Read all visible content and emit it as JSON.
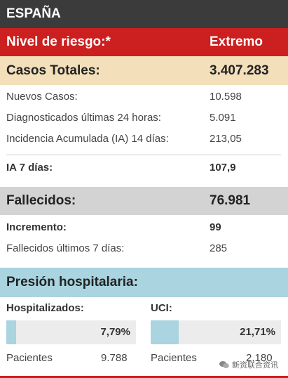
{
  "header": {
    "title": "ESPAÑA"
  },
  "risk": {
    "label": "Nivel de riesgo:*",
    "value": "Extremo"
  },
  "casos": {
    "label": "Casos Totales:",
    "value": "3.407.283"
  },
  "casos_rows": [
    {
      "label": "Nuevos Casos:",
      "value": "10.598"
    },
    {
      "label": "Diagnosticados últimas 24 horas:",
      "value": "5.091"
    },
    {
      "label": "Incidencia Acumulada (IA) 14 días:",
      "value": "213,05"
    },
    {
      "label": "IA 7 días:",
      "value": "107,9"
    }
  ],
  "fallecidos": {
    "label": "Fallecidos:",
    "value": "76.981"
  },
  "fallecidos_rows": [
    {
      "label": "Incremento:",
      "value": "99"
    },
    {
      "label": "Fallecidos últimos 7 días:",
      "value": "285"
    }
  ],
  "presion": {
    "title": "Presión hospitalaria:",
    "hospitalizados": {
      "label": "Hospitalizados:",
      "percent": "7,79%",
      "fraction": 0.0779,
      "patients_label": "Pacientes",
      "patients": "9.788"
    },
    "uci": {
      "label": "UCI:",
      "percent": "21,71%",
      "fraction": 0.2171,
      "patients_label": "Pacientes",
      "patients": "2.180"
    }
  },
  "watermark": {
    "text": "新资联合资讯"
  },
  "colors": {
    "header": "#3b3b3b",
    "risk": "#cc1f1f",
    "casos": "#f3dfba",
    "fallecidos": "#d3d3d3",
    "presion": "#a9d4e0"
  }
}
